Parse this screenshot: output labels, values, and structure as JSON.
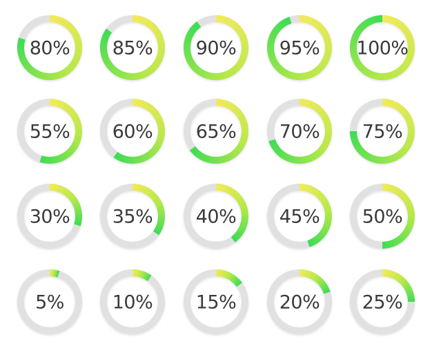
{
  "colors": {
    "track": "#e1e1e1",
    "track_shadow": "#cfcfcf",
    "gradient_start": "#f2ea5a",
    "gradient_mid": "#b6e84a",
    "gradient_end": "#3ddc55",
    "text": "#3a3a3a",
    "background": "#ffffff"
  },
  "rows": [
    [
      {
        "label": "80%",
        "value": 80
      },
      {
        "label": "85%",
        "value": 85
      },
      {
        "label": "90%",
        "value": 90
      },
      {
        "label": "95%",
        "value": 95
      },
      {
        "label": "100%",
        "value": 100
      }
    ],
    [
      {
        "label": "55%",
        "value": 55
      },
      {
        "label": "60%",
        "value": 60
      },
      {
        "label": "65%",
        "value": 65
      },
      {
        "label": "70%",
        "value": 70
      },
      {
        "label": "75%",
        "value": 75
      }
    ],
    [
      {
        "label": "30%",
        "value": 30
      },
      {
        "label": "35%",
        "value": 35
      },
      {
        "label": "40%",
        "value": 40
      },
      {
        "label": "45%",
        "value": 45
      },
      {
        "label": "50%",
        "value": 50
      }
    ],
    [
      {
        "label": "5%",
        "value": 5
      },
      {
        "label": "10%",
        "value": 10
      },
      {
        "label": "15%",
        "value": 15
      },
      {
        "label": "20%",
        "value": 20
      },
      {
        "label": "25%",
        "value": 25
      }
    ]
  ]
}
